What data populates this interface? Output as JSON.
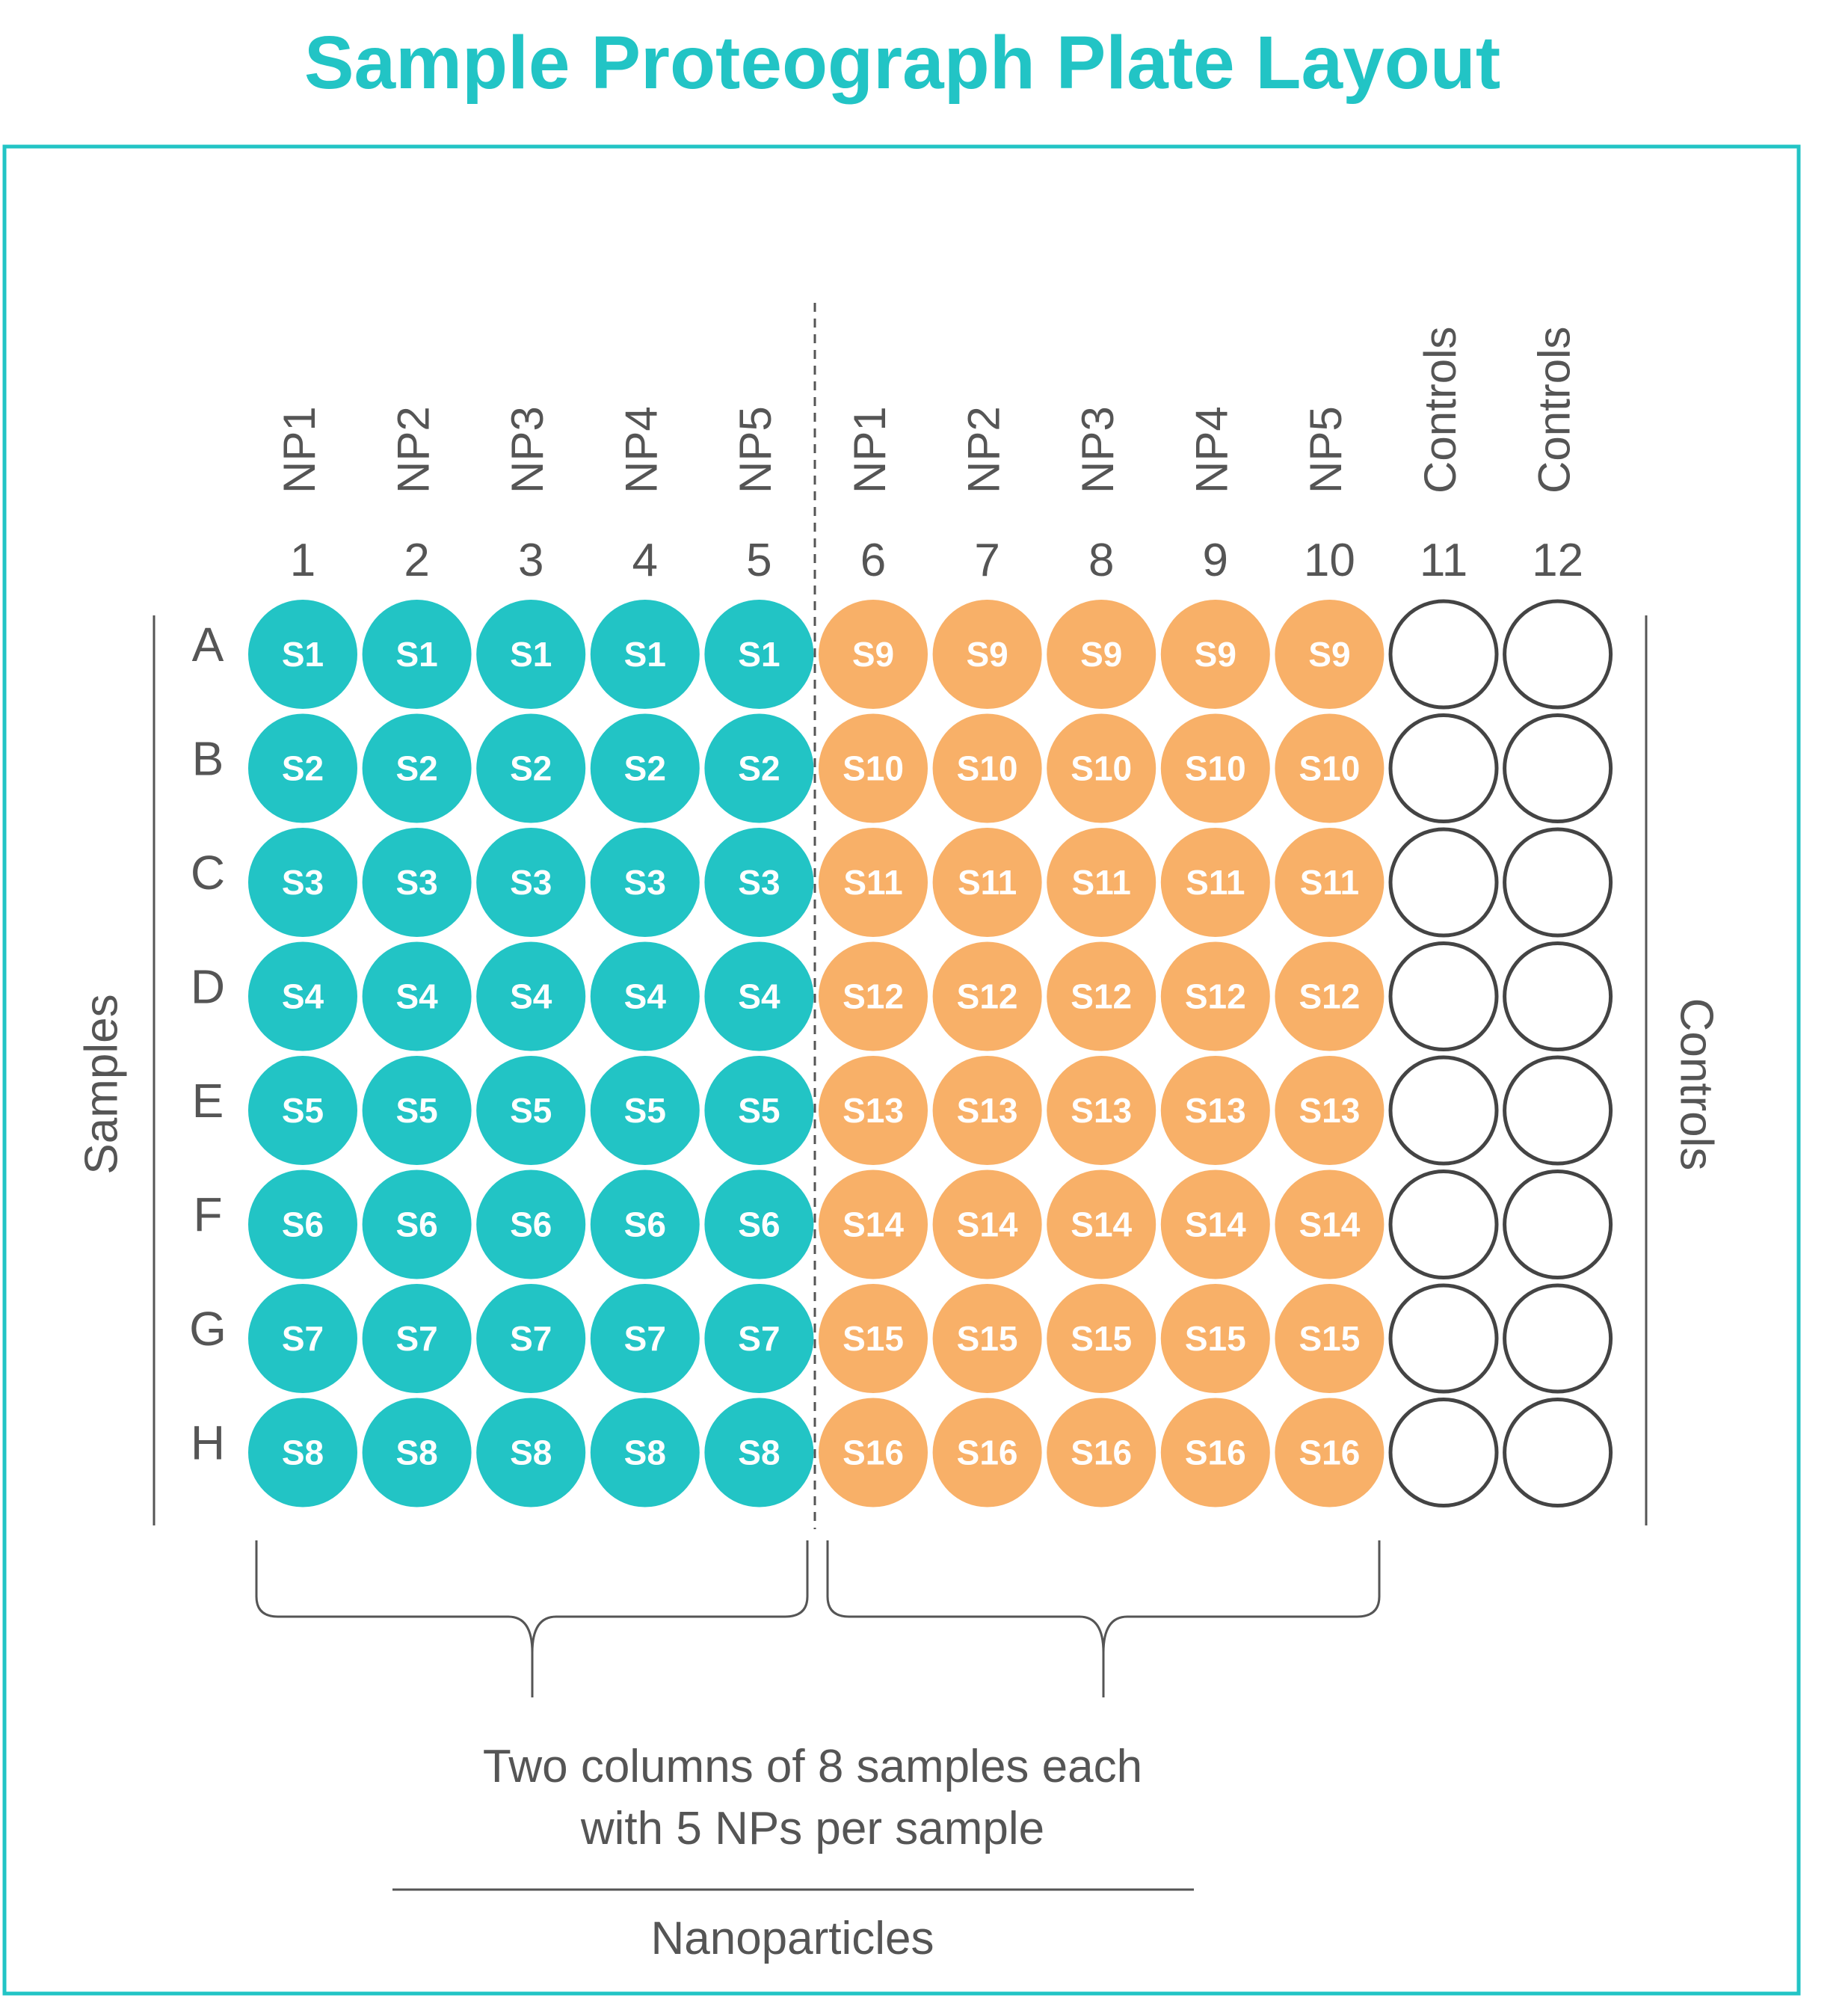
{
  "title": "Sample Proteograph Plate Layout",
  "colors": {
    "accent": "#22c4c5",
    "sample_left": "#22c4c5",
    "sample_right": "#f8b068",
    "control_stroke": "#444444",
    "text": "#555555"
  },
  "column_headers": [
    "NP1",
    "NP2",
    "NP3",
    "NP4",
    "NP5",
    "NP1",
    "NP2",
    "NP3",
    "NP4",
    "NP5",
    "Controls",
    "Controls"
  ],
  "column_numbers": [
    "1",
    "2",
    "3",
    "4",
    "5",
    "6",
    "7",
    "8",
    "9",
    "10",
    "11",
    "12"
  ],
  "row_labels": [
    "A",
    "B",
    "C",
    "D",
    "E",
    "F",
    "G",
    "H"
  ],
  "wells": [
    [
      "S1",
      "S1",
      "S1",
      "S1",
      "S1",
      "S9",
      "S9",
      "S9",
      "S9",
      "S9",
      "",
      ""
    ],
    [
      "S2",
      "S2",
      "S2",
      "S2",
      "S2",
      "S10",
      "S10",
      "S10",
      "S10",
      "S10",
      "",
      ""
    ],
    [
      "S3",
      "S3",
      "S3",
      "S3",
      "S3",
      "S11",
      "S11",
      "S11",
      "S11",
      "S11",
      "",
      ""
    ],
    [
      "S4",
      "S4",
      "S4",
      "S4",
      "S4",
      "S12",
      "S12",
      "S12",
      "S12",
      "S12",
      "",
      ""
    ],
    [
      "S5",
      "S5",
      "S5",
      "S5",
      "S5",
      "S13",
      "S13",
      "S13",
      "S13",
      "S13",
      "",
      ""
    ],
    [
      "S6",
      "S6",
      "S6",
      "S6",
      "S6",
      "S14",
      "S14",
      "S14",
      "S14",
      "S14",
      "",
      ""
    ],
    [
      "S7",
      "S7",
      "S7",
      "S7",
      "S7",
      "S15",
      "S15",
      "S15",
      "S15",
      "S15",
      "",
      ""
    ],
    [
      "S8",
      "S8",
      "S8",
      "S8",
      "S8",
      "S16",
      "S16",
      "S16",
      "S16",
      "S16",
      "",
      ""
    ]
  ],
  "side_labels": {
    "left": "Samples",
    "right": "Controls"
  },
  "caption": {
    "line1": "Two columns of 8 samples each",
    "line2": "with 5 NPs per sample"
  },
  "footer_label": "Nanoparticles"
}
